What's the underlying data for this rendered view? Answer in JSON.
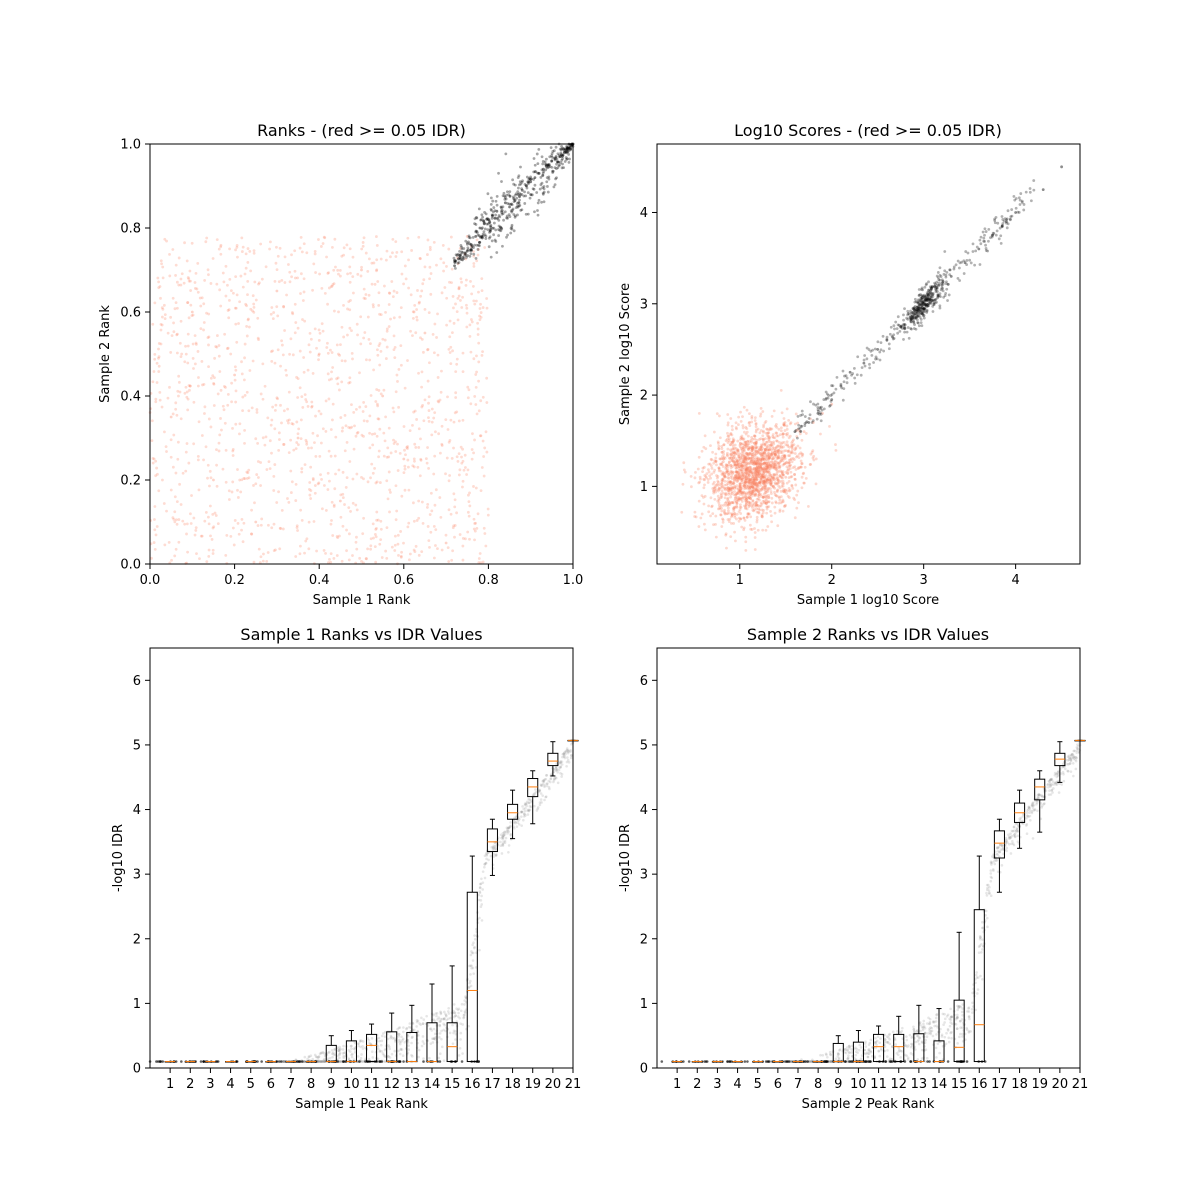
{
  "figure": {
    "background": "#ffffff",
    "colors": {
      "sig_points": "#000000",
      "nonsig_points": "#fa8060",
      "box_edge": "#000000",
      "median": "#ff7f0e",
      "scatter_gray": "#808080"
    }
  },
  "chart_data": [
    {
      "id": "ranks",
      "type": "scatter",
      "title": "Ranks - (red >= 0.05 IDR)",
      "xlabel": "Sample 1 Rank",
      "ylabel": "Sample 2 Rank",
      "xlim": [
        0.0,
        1.0
      ],
      "ylim": [
        0.0,
        1.0
      ],
      "xticks": [
        "0.0",
        "0.2",
        "0.4",
        "0.6",
        "0.8",
        "1.0"
      ],
      "yticks": [
        "0.0",
        "0.2",
        "0.4",
        "0.6",
        "0.8",
        "1.0"
      ],
      "grid": false,
      "series": [
        {
          "color": "#000000",
          "description_points": "tight diagonal cloud",
          "x": [
            0.72,
            0.74,
            0.76,
            0.77,
            0.78,
            0.79,
            0.8,
            0.81,
            0.82,
            0.83,
            0.84,
            0.85,
            0.86,
            0.87,
            0.88,
            0.89,
            0.9,
            0.91,
            0.92,
            0.93,
            0.94,
            0.95,
            0.96,
            0.97,
            0.98,
            0.99,
            1.0
          ],
          "y": [
            0.71,
            0.73,
            0.76,
            0.78,
            0.8,
            0.81,
            0.82,
            0.83,
            0.84,
            0.85,
            0.86,
            0.85,
            0.87,
            0.88,
            0.89,
            0.9,
            0.91,
            0.92,
            0.93,
            0.94,
            0.95,
            0.96,
            0.97,
            0.97,
            0.98,
            0.99,
            1.0
          ]
        },
        {
          "color": "#fa8060",
          "x": [
            0.05,
            0.1,
            0.15,
            0.2,
            0.25,
            0.3,
            0.35,
            0.4,
            0.45,
            0.5,
            0.55,
            0.6,
            0.65,
            0.7,
            0.75
          ],
          "y": [
            0.35,
            0.6,
            0.2,
            0.45,
            0.1,
            0.65,
            0.3,
            0.5,
            0.15,
            0.7,
            0.4,
            0.25,
            0.55,
            0.05,
            0.78
          ]
        }
      ]
    },
    {
      "id": "log10",
      "type": "scatter",
      "title": "Log10 Scores - (red >= 0.05 IDR)",
      "xlabel": "Sample 1 log10 Score",
      "ylabel": "Sample 2 log10 Score",
      "xlim": [
        0.1,
        4.7
      ],
      "ylim": [
        0.15,
        4.75
      ],
      "xticks": [
        "1",
        "2",
        "3",
        "4"
      ],
      "yticks": [
        "1",
        "2",
        "3",
        "4"
      ],
      "grid": false,
      "series": [
        {
          "color": "#000000",
          "x": [
            1.6,
            1.75,
            1.85,
            2.0,
            2.1,
            2.2,
            2.35,
            2.5,
            2.6,
            2.75,
            2.85,
            2.95,
            3.0,
            3.05,
            3.1,
            3.2,
            3.3,
            3.45,
            3.6,
            3.75,
            3.9,
            4.0,
            4.3,
            4.5
          ],
          "y": [
            1.6,
            1.7,
            1.8,
            1.95,
            2.1,
            2.25,
            2.35,
            2.5,
            2.6,
            2.75,
            2.85,
            2.95,
            3.0,
            3.05,
            3.1,
            3.2,
            3.3,
            3.45,
            3.6,
            3.75,
            3.9,
            4.0,
            4.25,
            4.5
          ]
        },
        {
          "color": "#fa8060",
          "x": [
            0.6,
            0.8,
            0.9,
            1.0,
            1.1,
            1.2,
            1.3,
            1.4,
            1.5,
            1.6,
            1.7,
            1.8,
            1.9,
            2.0
          ],
          "y": [
            1.2,
            0.9,
            1.4,
            1.1,
            1.3,
            1.0,
            1.2,
            1.5,
            1.1,
            1.4,
            1.6,
            1.7,
            1.8,
            1.9
          ]
        }
      ]
    },
    {
      "id": "s1idr",
      "type": "box",
      "title": "Sample 1 Ranks vs IDR Values",
      "xlabel": "Sample 1 Peak Rank",
      "ylabel": "-log10 IDR",
      "xlim": [
        0,
        21
      ],
      "ylim": [
        0,
        6.5
      ],
      "xticks": [
        "1",
        "2",
        "3",
        "4",
        "5",
        "6",
        "7",
        "8",
        "9",
        "10",
        "11",
        "12",
        "13",
        "14",
        "15",
        "16",
        "17",
        "18",
        "19",
        "20",
        "21"
      ],
      "yticks": [
        "0",
        "1",
        "2",
        "3",
        "4",
        "5",
        "6"
      ],
      "grid": false,
      "boxes": [
        {
          "pos": 1,
          "whislo": 0.1,
          "q1": 0.1,
          "med": 0.1,
          "q3": 0.1,
          "whishi": 0.1
        },
        {
          "pos": 2,
          "whislo": 0.1,
          "q1": 0.1,
          "med": 0.1,
          "q3": 0.1,
          "whishi": 0.1
        },
        {
          "pos": 3,
          "whislo": 0.1,
          "q1": 0.1,
          "med": 0.1,
          "q3": 0.1,
          "whishi": 0.1
        },
        {
          "pos": 4,
          "whislo": 0.1,
          "q1": 0.1,
          "med": 0.1,
          "q3": 0.1,
          "whishi": 0.1
        },
        {
          "pos": 5,
          "whislo": 0.1,
          "q1": 0.1,
          "med": 0.1,
          "q3": 0.1,
          "whishi": 0.1
        },
        {
          "pos": 6,
          "whislo": 0.1,
          "q1": 0.1,
          "med": 0.1,
          "q3": 0.1,
          "whishi": 0.1
        },
        {
          "pos": 7,
          "whislo": 0.1,
          "q1": 0.1,
          "med": 0.1,
          "q3": 0.1,
          "whishi": 0.1
        },
        {
          "pos": 8,
          "whislo": 0.1,
          "q1": 0.1,
          "med": 0.1,
          "q3": 0.1,
          "whishi": 0.1
        },
        {
          "pos": 9,
          "whislo": 0.1,
          "q1": 0.1,
          "med": 0.1,
          "q3": 0.35,
          "whishi": 0.5
        },
        {
          "pos": 10,
          "whislo": 0.1,
          "q1": 0.1,
          "med": 0.1,
          "q3": 0.42,
          "whishi": 0.58
        },
        {
          "pos": 11,
          "whislo": 0.1,
          "q1": 0.1,
          "med": 0.35,
          "q3": 0.52,
          "whishi": 0.68
        },
        {
          "pos": 12,
          "whislo": 0.1,
          "q1": 0.1,
          "med": 0.1,
          "q3": 0.56,
          "whishi": 0.85
        },
        {
          "pos": 13,
          "whislo": 0.1,
          "q1": 0.1,
          "med": 0.1,
          "q3": 0.55,
          "whishi": 0.97
        },
        {
          "pos": 14,
          "whislo": 0.1,
          "q1": 0.1,
          "med": 0.1,
          "q3": 0.7,
          "whishi": 1.3
        },
        {
          "pos": 15,
          "whislo": 0.1,
          "q1": 0.1,
          "med": 0.33,
          "q3": 0.7,
          "whishi": 1.58
        },
        {
          "pos": 16,
          "whislo": 0.1,
          "q1": 0.1,
          "med": 1.2,
          "q3": 2.72,
          "whishi": 3.28
        },
        {
          "pos": 17,
          "whislo": 2.98,
          "q1": 3.35,
          "med": 3.5,
          "q3": 3.7,
          "whishi": 3.85
        },
        {
          "pos": 18,
          "whislo": 3.55,
          "q1": 3.85,
          "med": 3.95,
          "q3": 4.08,
          "whishi": 4.3
        },
        {
          "pos": 19,
          "whislo": 3.78,
          "q1": 4.2,
          "med": 4.35,
          "q3": 4.48,
          "whishi": 4.6
        },
        {
          "pos": 20,
          "whislo": 4.52,
          "q1": 4.68,
          "med": 4.75,
          "q3": 4.87,
          "whishi": 5.05
        },
        {
          "pos": 21,
          "whislo": 5.07,
          "q1": 5.07,
          "med": 5.07,
          "q3": 5.07,
          "whishi": 5.07
        }
      ]
    },
    {
      "id": "s2idr",
      "type": "box",
      "title": "Sample 2 Ranks vs IDR Values",
      "xlabel": "Sample 2 Peak Rank",
      "ylabel": "-log10 IDR",
      "xlim": [
        0,
        21
      ],
      "ylim": [
        0,
        6.5
      ],
      "xticks": [
        "1",
        "2",
        "3",
        "4",
        "5",
        "6",
        "7",
        "8",
        "9",
        "10",
        "11",
        "12",
        "13",
        "14",
        "15",
        "16",
        "17",
        "18",
        "19",
        "20",
        "21"
      ],
      "yticks": [
        "0",
        "1",
        "2",
        "3",
        "4",
        "5",
        "6"
      ],
      "grid": false,
      "boxes": [
        {
          "pos": 1,
          "whislo": 0.1,
          "q1": 0.1,
          "med": 0.1,
          "q3": 0.1,
          "whishi": 0.1
        },
        {
          "pos": 2,
          "whislo": 0.1,
          "q1": 0.1,
          "med": 0.1,
          "q3": 0.1,
          "whishi": 0.1
        },
        {
          "pos": 3,
          "whislo": 0.1,
          "q1": 0.1,
          "med": 0.1,
          "q3": 0.1,
          "whishi": 0.1
        },
        {
          "pos": 4,
          "whislo": 0.1,
          "q1": 0.1,
          "med": 0.1,
          "q3": 0.1,
          "whishi": 0.1
        },
        {
          "pos": 5,
          "whislo": 0.1,
          "q1": 0.1,
          "med": 0.1,
          "q3": 0.1,
          "whishi": 0.1
        },
        {
          "pos": 6,
          "whislo": 0.1,
          "q1": 0.1,
          "med": 0.1,
          "q3": 0.1,
          "whishi": 0.1
        },
        {
          "pos": 7,
          "whislo": 0.1,
          "q1": 0.1,
          "med": 0.1,
          "q3": 0.1,
          "whishi": 0.1
        },
        {
          "pos": 8,
          "whislo": 0.1,
          "q1": 0.1,
          "med": 0.1,
          "q3": 0.1,
          "whishi": 0.1
        },
        {
          "pos": 9,
          "whislo": 0.1,
          "q1": 0.1,
          "med": 0.1,
          "q3": 0.38,
          "whishi": 0.5
        },
        {
          "pos": 10,
          "whislo": 0.1,
          "q1": 0.1,
          "med": 0.1,
          "q3": 0.4,
          "whishi": 0.58
        },
        {
          "pos": 11,
          "whislo": 0.1,
          "q1": 0.1,
          "med": 0.33,
          "q3": 0.52,
          "whishi": 0.65
        },
        {
          "pos": 12,
          "whislo": 0.1,
          "q1": 0.1,
          "med": 0.33,
          "q3": 0.52,
          "whishi": 0.8
        },
        {
          "pos": 13,
          "whislo": 0.1,
          "q1": 0.1,
          "med": 0.1,
          "q3": 0.53,
          "whishi": 0.97
        },
        {
          "pos": 14,
          "whislo": 0.1,
          "q1": 0.1,
          "med": 0.1,
          "q3": 0.42,
          "whishi": 0.92
        },
        {
          "pos": 15,
          "whislo": 0.1,
          "q1": 0.1,
          "med": 0.32,
          "q3": 1.05,
          "whishi": 2.1
        },
        {
          "pos": 16,
          "whislo": 0.1,
          "q1": 0.1,
          "med": 0.67,
          "q3": 2.45,
          "whishi": 3.28
        },
        {
          "pos": 17,
          "whislo": 2.72,
          "q1": 3.25,
          "med": 3.48,
          "q3": 3.67,
          "whishi": 3.85
        },
        {
          "pos": 18,
          "whislo": 3.4,
          "q1": 3.8,
          "med": 3.95,
          "q3": 4.1,
          "whishi": 4.3
        },
        {
          "pos": 19,
          "whislo": 3.65,
          "q1": 4.15,
          "med": 4.35,
          "q3": 4.47,
          "whishi": 4.6
        },
        {
          "pos": 20,
          "whislo": 4.42,
          "q1": 4.68,
          "med": 4.78,
          "q3": 4.87,
          "whishi": 5.05
        },
        {
          "pos": 21,
          "whislo": 5.07,
          "q1": 5.07,
          "med": 5.07,
          "q3": 5.07,
          "whishi": 5.07
        }
      ]
    }
  ]
}
